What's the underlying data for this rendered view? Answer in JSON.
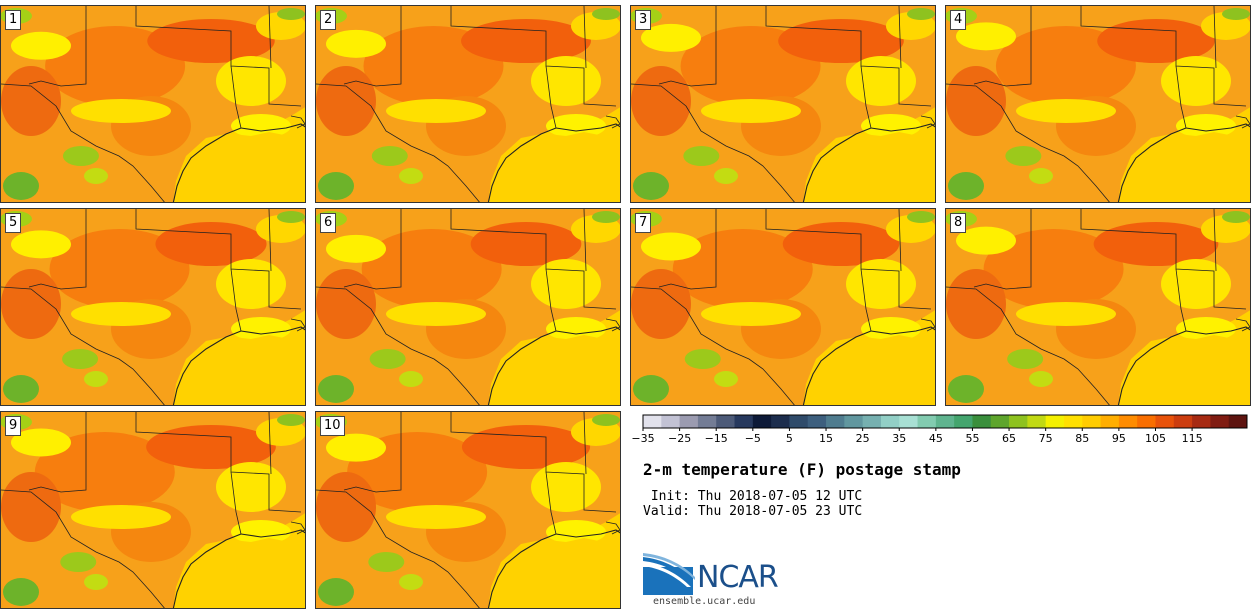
{
  "panels": [
    {
      "label": "1"
    },
    {
      "label": "2"
    },
    {
      "label": "3"
    },
    {
      "label": "4"
    },
    {
      "label": "5"
    },
    {
      "label": "6"
    },
    {
      "label": "7"
    },
    {
      "label": "8"
    },
    {
      "label": "9"
    },
    {
      "label": "10"
    }
  ],
  "colorbar": {
    "colors": [
      "#e2e2ec",
      "#c2c2d4",
      "#9b9bb0",
      "#737c95",
      "#4c5a78",
      "#27395e",
      "#0d1a38",
      "#1c2d4d",
      "#2f4b6a",
      "#3d5f7e",
      "#4f7c8f",
      "#61979f",
      "#76b0b0",
      "#92cfc6",
      "#a8e0d4",
      "#82cbb0",
      "#5fb48f",
      "#44a56e",
      "#3a8f3c",
      "#5ea52c",
      "#8ec21f",
      "#c1d913",
      "#f4f000",
      "#ffe000",
      "#ffcc00",
      "#ffae00",
      "#ff8c00",
      "#f96e00",
      "#e8520a",
      "#cc3d0f",
      "#a72a12",
      "#801c12",
      "#5e1410"
    ],
    "tick_labels": [
      "−35",
      "−25",
      "−15",
      "−5",
      "5",
      "15",
      "25",
      "35",
      "45",
      "55",
      "65",
      "75",
      "85",
      "95",
      "105",
      "115"
    ]
  },
  "title": "2-m temperature (F) postage stamp",
  "init_line": " Init: Thu 2018-07-05 12 UTC",
  "valid_line": "Valid: Thu 2018-07-05 23 UTC",
  "logo": {
    "text": "NCAR",
    "site": "ensemble.ucar.edu",
    "icon": "ncar-logo-icon"
  }
}
